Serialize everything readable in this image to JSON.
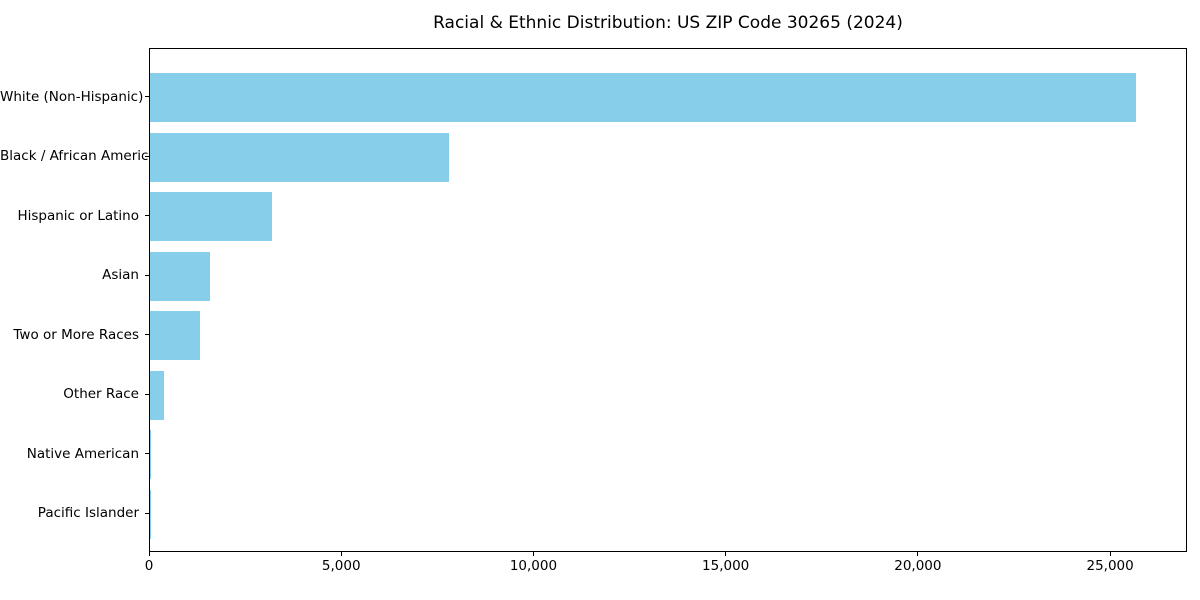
{
  "chart_data": {
    "type": "bar",
    "orientation": "horizontal",
    "title": "Racial & Ethnic Distribution: US ZIP Code 30265 (2024)",
    "categories": [
      "White (Non-Hispanic)",
      "Black / African American",
      "Hispanic or Latino",
      "Asian",
      "Two or More Races",
      "Other Race",
      "Native American",
      "Pacific Islander"
    ],
    "values": [
      25700,
      7780,
      3170,
      1560,
      1310,
      370,
      30,
      10
    ],
    "xlabel": "",
    "ylabel": "",
    "xlim": [
      0,
      27000
    ],
    "xticks": [
      0,
      5000,
      10000,
      15000,
      20000,
      25000
    ],
    "xtick_labels": [
      "0",
      "5,000",
      "10,000",
      "15,000",
      "20,000",
      "25,000"
    ],
    "bar_color": "#87CEEB",
    "grid": false,
    "legend": null,
    "background_color": "#ffffff",
    "spine_color": "#000000"
  }
}
